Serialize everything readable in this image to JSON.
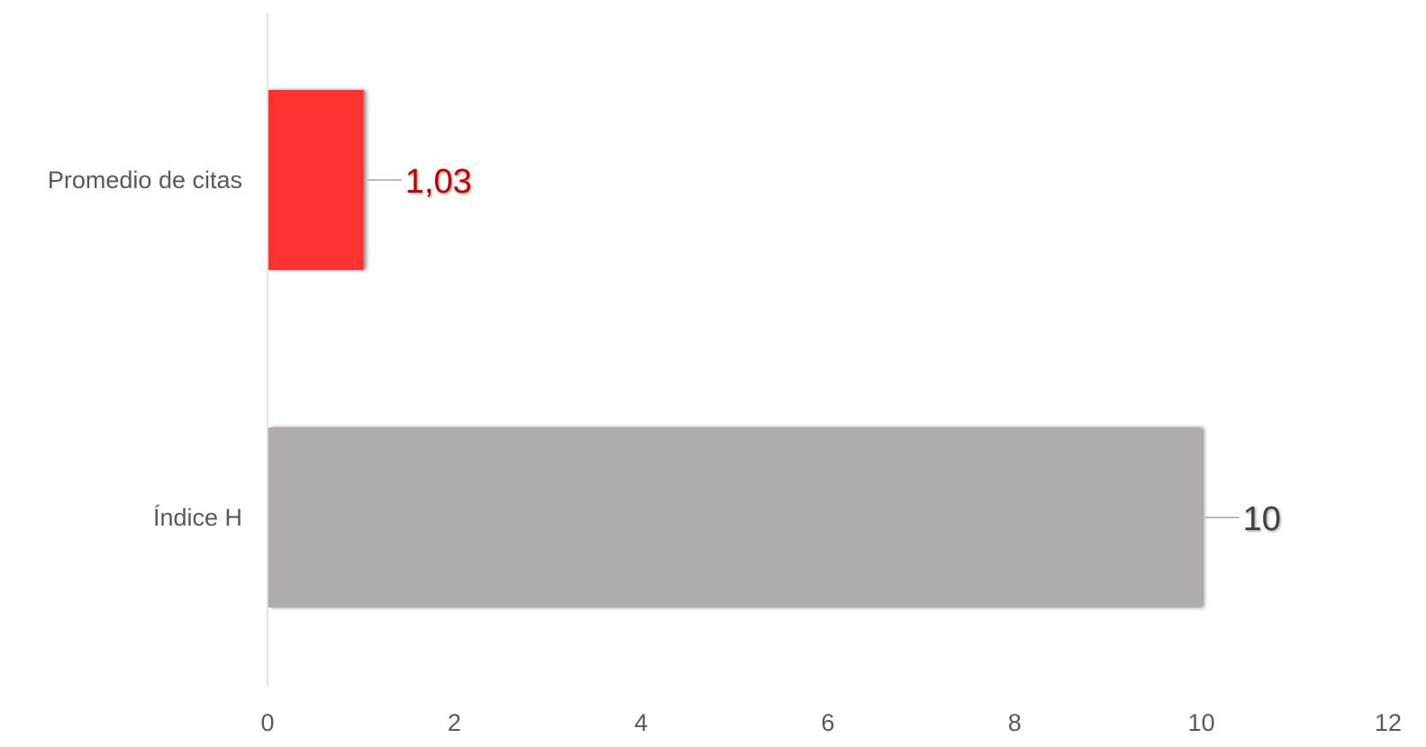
{
  "chart_data": {
    "type": "bar",
    "orientation": "horizontal",
    "categories": [
      "Promedio de citas",
      "Índice H"
    ],
    "values": [
      1.03,
      10
    ],
    "data_labels": [
      "1,03",
      "10"
    ],
    "bar_colors": [
      "#FF3333",
      "#AFACAB"
    ],
    "label_colors": [
      "#C00000",
      "#404040"
    ],
    "xlim": [
      0,
      12
    ],
    "x_ticks": [
      0,
      2,
      4,
      6,
      8,
      10,
      12
    ],
    "x_tick_labels": [
      "0",
      "2",
      "4",
      "6",
      "8",
      "10",
      "12"
    ],
    "title": "",
    "xlabel": "",
    "ylabel": "",
    "grid": false,
    "legend": "none"
  }
}
